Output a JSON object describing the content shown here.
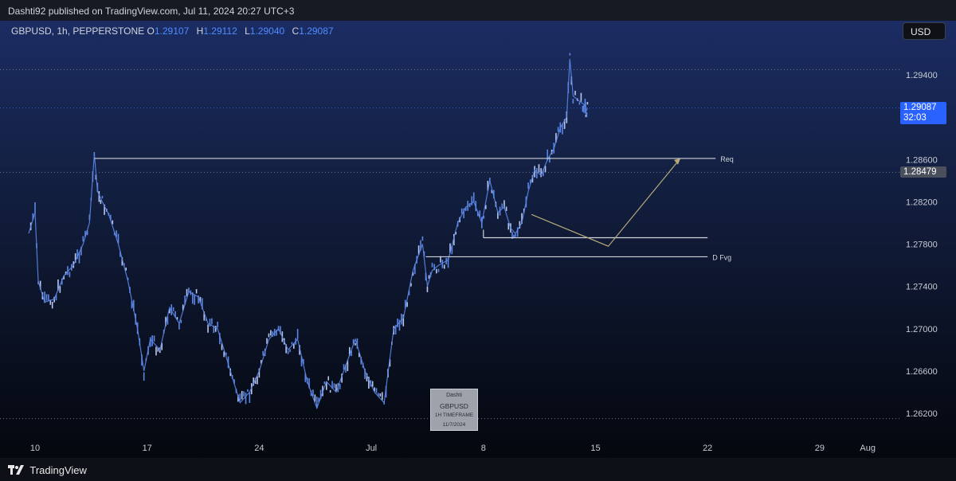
{
  "header": {
    "published_text": "Dashti92 published on TradingView.com, Jul 11, 2024 20:27 UTC+3"
  },
  "symbol": {
    "name": "GBPUSD, 1h, PEPPERSTONE",
    "open_label": "O",
    "open": "1.29107",
    "high_label": "H",
    "high": "1.29112",
    "low_label": "L",
    "low": "1.29040",
    "close_label": "C",
    "close": "1.29087"
  },
  "currency_button": "USD",
  "current_price": {
    "value": "1.29087",
    "countdown": "32:03"
  },
  "level_badge": "1.28479",
  "watermark": {
    "author": "Dashti",
    "symbol": "GBPUSD",
    "timeframe": "1H TIMEFRAME",
    "date": "11/7/2024"
  },
  "footer": {
    "brand": "TradingView"
  },
  "colors": {
    "candle": "#5b86e5",
    "candle_light": "#b8c7f0",
    "current_price": "#2962ff",
    "line": "#d1d4dc",
    "arrow": "#b5a97a"
  },
  "chart_data": {
    "type": "line",
    "title": "",
    "xlabel": "",
    "ylabel": "",
    "ylim": [
      1.261,
      1.2972
    ],
    "y_ticks": [
      "1.29400",
      "1.28600",
      "1.28200",
      "1.27800",
      "1.27400",
      "1.27000",
      "1.26600",
      "1.26200"
    ],
    "x_ticks": [
      {
        "label": "10",
        "day": 10
      },
      {
        "label": "17",
        "day": 17
      },
      {
        "label": "24",
        "day": 24
      },
      {
        "label": "Jul",
        "day": 31
      },
      {
        "label": "8",
        "day": 38
      },
      {
        "label": "15",
        "day": 45
      },
      {
        "label": "22",
        "day": 52
      },
      {
        "label": "29",
        "day": 59
      },
      {
        "label": "Aug",
        "day": 62
      }
    ],
    "series": [
      {
        "values_x_day": [
          9.6,
          10.0,
          10.2,
          10.6,
          11.2,
          11.8,
          12.4,
          13.0,
          13.4,
          13.7,
          13.9,
          14.2,
          14.6,
          15.2,
          15.8,
          16.4,
          16.8,
          17.2,
          17.8,
          18.4,
          19.0,
          19.6,
          20.2,
          20.8,
          21.4,
          21.8,
          22.2,
          22.8,
          23.4,
          24.0,
          24.6,
          25.2,
          25.8,
          26.4,
          27.0,
          27.6,
          28.2,
          28.8,
          29.4,
          30.0,
          30.6,
          31.2,
          31.8,
          32.4,
          33.0,
          33.6,
          34.2,
          34.5,
          34.8,
          35.2,
          35.8,
          36.4,
          36.9,
          37.4,
          37.9,
          38.4,
          38.9,
          39.3,
          39.7,
          40.0,
          40.4,
          40.8,
          41.2,
          41.6,
          42.0,
          42.4,
          42.8,
          43.2,
          43.4,
          43.6,
          44.0,
          44.2,
          44.35,
          44.4,
          44.5
        ],
        "values": [
          1.279,
          1.281,
          1.2745,
          1.2725,
          1.2728,
          1.275,
          1.276,
          1.278,
          1.28,
          1.2865,
          1.283,
          1.282,
          1.2808,
          1.278,
          1.2745,
          1.27,
          1.266,
          1.269,
          1.268,
          1.272,
          1.2705,
          1.2735,
          1.273,
          1.2705,
          1.27,
          1.268,
          1.266,
          1.263,
          1.264,
          1.266,
          1.269,
          1.27,
          1.268,
          1.269,
          1.265,
          1.2625,
          1.265,
          1.264,
          1.2665,
          1.269,
          1.266,
          1.264,
          1.263,
          1.27,
          1.271,
          1.2755,
          1.278,
          1.274,
          1.2755,
          1.276,
          1.2765,
          1.28,
          1.2815,
          1.282,
          1.28,
          1.284,
          1.281,
          1.2815,
          1.2795,
          1.279,
          1.28,
          1.283,
          1.285,
          1.2845,
          1.286,
          1.287,
          1.289,
          1.29,
          1.2955,
          1.292,
          1.2915,
          1.2913,
          1.2911,
          1.2905,
          1.2909
        ]
      }
    ],
    "annotations": [
      {
        "label": "Req",
        "price": 1.2861,
        "from_day": 13.7,
        "to_day": 52.5
      },
      {
        "label": "D Fvg",
        "price": 1.2768,
        "from_day": 34.4,
        "to_day": 52.0
      },
      {
        "label": "",
        "price": 1.2786,
        "from_day": 38.0,
        "to_day": 52.0
      }
    ],
    "arrow_path": [
      {
        "day": 41.0,
        "price": 1.2808
      },
      {
        "day": 45.8,
        "price": 1.2778
      },
      {
        "day": 50.3,
        "price": 1.2861
      }
    ],
    "dotted_levels": [
      1.2945,
      1.29087,
      1.28479,
      1.2615
    ]
  }
}
